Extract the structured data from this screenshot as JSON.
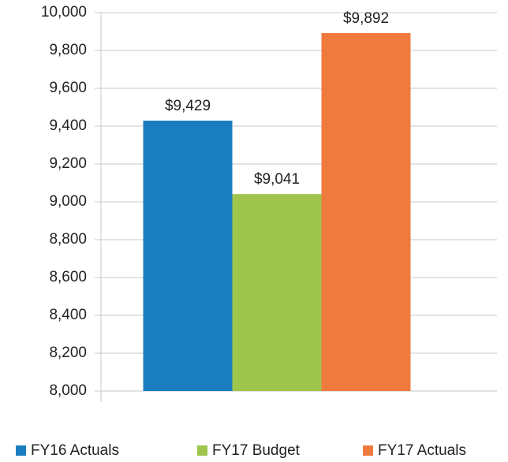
{
  "chart_data": {
    "type": "bar",
    "categories": [
      null
    ],
    "series": [
      {
        "name": "FY16 Actuals",
        "color": "#1a7dc0",
        "values": [
          9429
        ],
        "value_labels": [
          "$9,429"
        ]
      },
      {
        "name": "FY17 Budget",
        "color": "#9fc54d",
        "values": [
          9041
        ],
        "value_labels": [
          "$9,041"
        ]
      },
      {
        "name": "FY17 Actuals",
        "color": "#ef7a3e",
        "values": [
          9892
        ],
        "value_labels": [
          "$9,892"
        ]
      }
    ],
    "ylim": [
      8000,
      10000
    ],
    "yticks": [
      {
        "value": 8000,
        "label": "8,000"
      },
      {
        "value": 8200,
        "label": "8,200"
      },
      {
        "value": 8400,
        "label": "8,400"
      },
      {
        "value": 8600,
        "label": "8,600"
      },
      {
        "value": 8800,
        "label": "8,800"
      },
      {
        "value": 9000,
        "label": "9,000"
      },
      {
        "value": 9200,
        "label": "9,200"
      },
      {
        "value": 9400,
        "label": "9,400"
      },
      {
        "value": 9600,
        "label": "9,600"
      },
      {
        "value": 9800,
        "label": "9,800"
      },
      {
        "value": 10000,
        "label": "10,000"
      }
    ],
    "grid": true,
    "legend": "bottom"
  }
}
